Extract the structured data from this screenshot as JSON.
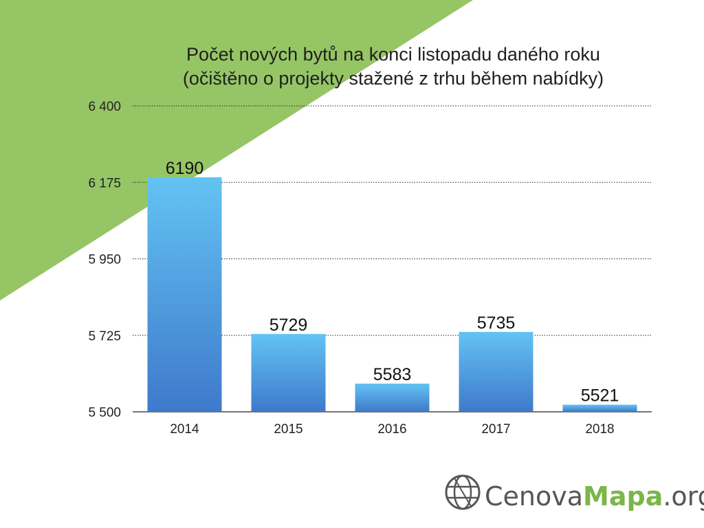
{
  "colors": {
    "background": "#ffffff",
    "accent_triangle": "#96c566",
    "bar_top": "#63c3f3",
    "bar_bottom": "#3f79cb",
    "gridline": "#222222",
    "logo_gray": "#555555",
    "logo_green": "#7ab648"
  },
  "chart_data": {
    "type": "bar",
    "title": "Počet nových bytů na konci listopadu daného roku",
    "subtitle": "(očištěno o projekty stažené z trhu během nabídky)",
    "categories": [
      "2014",
      "2015",
      "2016",
      "2017",
      "2018"
    ],
    "values": [
      6190,
      5729,
      5583,
      5735,
      5521
    ],
    "data_labels": [
      "6190",
      "5729",
      "5583",
      "5735",
      "5521"
    ],
    "ylim": [
      5500,
      6400
    ],
    "y_ticks": [
      5500,
      5725,
      5950,
      6175,
      6400
    ],
    "y_tick_labels": [
      "5 500",
      "5 725",
      "5 950",
      "6 175",
      "6 400"
    ],
    "grid": true,
    "grid_style": "dotted",
    "legend": "none"
  },
  "logo": {
    "icon": "globe-grid-icon",
    "part1": "Cenova",
    "part2": "Mapa",
    "part3": ".org"
  }
}
